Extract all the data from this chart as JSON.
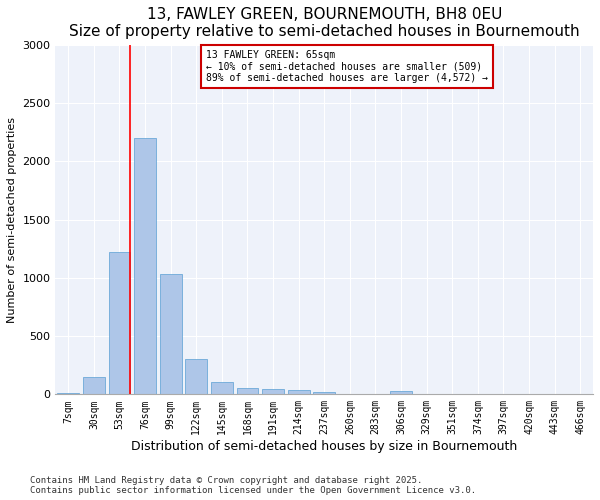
{
  "title": "13, FAWLEY GREEN, BOURNEMOUTH, BH8 0EU",
  "subtitle": "Size of property relative to semi-detached houses in Bournemouth",
  "xlabel": "Distribution of semi-detached houses by size in Bournemouth",
  "ylabel": "Number of semi-detached properties",
  "categories": [
    "7sqm",
    "30sqm",
    "53sqm",
    "76sqm",
    "99sqm",
    "122sqm",
    "145sqm",
    "168sqm",
    "191sqm",
    "214sqm",
    "237sqm",
    "260sqm",
    "283sqm",
    "306sqm",
    "329sqm",
    "351sqm",
    "374sqm",
    "397sqm",
    "420sqm",
    "443sqm",
    "466sqm"
  ],
  "values": [
    10,
    150,
    1220,
    2200,
    1030,
    300,
    110,
    55,
    50,
    35,
    20,
    0,
    0,
    30,
    0,
    0,
    0,
    0,
    0,
    0,
    0
  ],
  "bar_color": "#aec6e8",
  "bar_edge_color": "#5a9fd4",
  "red_line_index": 2,
  "annotation_title": "13 FAWLEY GREEN: 65sqm",
  "annotation_line1": "← 10% of semi-detached houses are smaller (509)",
  "annotation_line2": "89% of semi-detached houses are larger (4,572) →",
  "ylim": [
    0,
    3000
  ],
  "yticks": [
    0,
    500,
    1000,
    1500,
    2000,
    2500,
    3000
  ],
  "footnote1": "Contains HM Land Registry data © Crown copyright and database right 2025.",
  "footnote2": "Contains public sector information licensed under the Open Government Licence v3.0.",
  "bg_color": "#eef2fa",
  "title_fontsize": 11,
  "subtitle_fontsize": 9,
  "annotation_box_color": "#cc0000",
  "footnote_fontsize": 6.5,
  "ylabel_fontsize": 8,
  "xlabel_fontsize": 9,
  "tick_fontsize": 7,
  "ytick_fontsize": 8
}
